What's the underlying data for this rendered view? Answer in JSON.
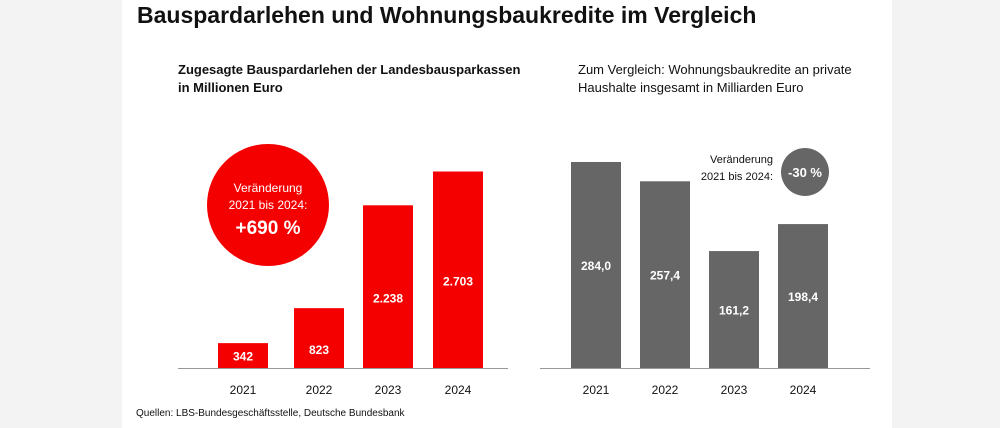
{
  "title": "Bauspardarlehen und Wohnungsbaukredite im Vergleich",
  "source": "Quellen: LBS-Bundesgeschäftsstelle, Deutsche Bundesbank",
  "colors": {
    "left_bar": "#f50000",
    "right_bar": "#666666",
    "label": "#ffffff"
  },
  "chart_data": [
    {
      "type": "bar",
      "title": [
        "Zugesagte Bauspardarlehen der Landesbausparkassen",
        "in Millionen Euro"
      ],
      "categories": [
        "2021",
        "2022",
        "2023",
        "2024"
      ],
      "values": [
        342,
        823,
        2238,
        2703
      ],
      "value_labels": [
        "342",
        "823",
        "2.238",
        "2.703"
      ],
      "annotation": {
        "lines": [
          "Veränderung",
          "2021 bis 2024:"
        ],
        "value": "+690 %"
      },
      "ylim": [
        0,
        3000
      ],
      "grid": false
    },
    {
      "type": "bar",
      "title": [
        "Zum Vergleich: Wohnungsbaukredite an private",
        "Haushalte insgesamt in Milliarden Euro"
      ],
      "categories": [
        "2021",
        "2022",
        "2023",
        "2024"
      ],
      "values": [
        284.0,
        257.4,
        161.2,
        198.4
      ],
      "value_labels": [
        "284,0",
        "257,4",
        "161,2",
        "198,4"
      ],
      "annotation": {
        "lines": [
          "Veränderung",
          "2021 bis 2024:"
        ],
        "value": "-30 %"
      },
      "ylim": [
        0,
        320
      ],
      "grid": false
    }
  ]
}
